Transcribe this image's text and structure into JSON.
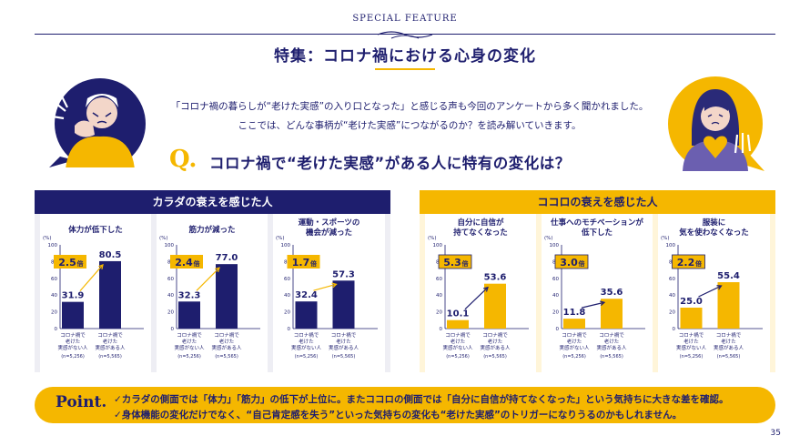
{
  "header": {
    "feature_label": "SPECIAL FEATURE",
    "title": "特集：コロナ禍における心身の変化"
  },
  "intro": {
    "line1": "「コロナ禍の暮らしが“老けた実感”の入り口となった」と感じる声も今回のアンケートから多く聞かれました。",
    "line2": "ここでは、どんな事柄が“老けた実感”につながるのか？を読み解いていきます。"
  },
  "question": {
    "letter": "Q.",
    "text": "コロナ禍で“老けた実感”がある人に特有の変化は？"
  },
  "sections": [
    {
      "title": "カラダの衰えを感じた人"
    },
    {
      "title": "ココロの衰えを感じた人"
    }
  ],
  "colors": {
    "navy": "#1e1e6e",
    "yellow": "#f5b700"
  },
  "chart_data": [
    {
      "type": "bar",
      "title": "体力が低下した",
      "ylabel": "(%)",
      "ylim": [
        0,
        100
      ],
      "yticks": [
        "100",
        "80",
        "60",
        "40",
        "20",
        "0"
      ],
      "categories": [
        "コロナ禍で老けた実感がない人",
        "コロナ禍で老けた実感がある人"
      ],
      "cat_lines": [
        [
          "コロナ禍で",
          "老けた",
          "実感がない人"
        ],
        [
          "コロナ禍で",
          "老けた",
          "実感がある人"
        ]
      ],
      "n": [
        "(n=5,256)",
        "(n=5,565)"
      ],
      "values": [
        31.9,
        80.5
      ],
      "labels": [
        "31.9",
        "80.5"
      ],
      "ratio": "2.5",
      "ratio_unit": "倍",
      "color": "#1e1e6e"
    },
    {
      "type": "bar",
      "title": "筋力が減った",
      "ylabel": "(%)",
      "ylim": [
        0,
        100
      ],
      "yticks": [
        "100",
        "80",
        "60",
        "40",
        "20",
        "0"
      ],
      "categories": [
        "コロナ禍で老けた実感がない人",
        "コロナ禍で老けた実感がある人"
      ],
      "cat_lines": [
        [
          "コロナ禍で",
          "老けた",
          "実感がない人"
        ],
        [
          "コロナ禍で",
          "老けた",
          "実感がある人"
        ]
      ],
      "n": [
        "(n=5,256)",
        "(n=5,565)"
      ],
      "values": [
        32.3,
        77.0
      ],
      "labels": [
        "32.3",
        "77.0"
      ],
      "ratio": "2.4",
      "ratio_unit": "倍",
      "color": "#1e1e6e"
    },
    {
      "type": "bar",
      "title": "運動・スポーツの機会が減った",
      "ylabel": "(%)",
      "ylim": [
        0,
        100
      ],
      "yticks": [
        "100",
        "80",
        "60",
        "40",
        "20",
        "0"
      ],
      "categories": [
        "コロナ禍で老けた実感がない人",
        "コロナ禍で老けた実感がある人"
      ],
      "cat_lines": [
        [
          "コロナ禍で",
          "老けた",
          "実感がない人"
        ],
        [
          "コロナ禍で",
          "老けた",
          "実感がある人"
        ]
      ],
      "n": [
        "(n=5,256)",
        "(n=5,565)"
      ],
      "values": [
        32.4,
        57.3
      ],
      "labels": [
        "32.4",
        "57.3"
      ],
      "ratio": "1.7",
      "ratio_unit": "倍",
      "color": "#1e1e6e"
    },
    {
      "type": "bar",
      "title": "自分に自信が持てなくなった",
      "ylabel": "(%)",
      "ylim": [
        0,
        100
      ],
      "yticks": [
        "100",
        "80",
        "60",
        "40",
        "20",
        "0"
      ],
      "categories": [
        "コロナ禍で老けた実感がない人",
        "コロナ禍で老けた実感がある人"
      ],
      "cat_lines": [
        [
          "コロナ禍で",
          "老けた",
          "実感がない人"
        ],
        [
          "コロナ禍で",
          "老けた",
          "実感がある人"
        ]
      ],
      "n": [
        "(n=5,256)",
        "(n=5,565)"
      ],
      "values": [
        10.1,
        53.6
      ],
      "labels": [
        "10.1",
        "53.6"
      ],
      "ratio": "5.3",
      "ratio_unit": "倍",
      "color": "#f5b700"
    },
    {
      "type": "bar",
      "title": "仕事へのモチベーションが低下した",
      "ylabel": "(%)",
      "ylim": [
        0,
        100
      ],
      "yticks": [
        "100",
        "80",
        "60",
        "40",
        "20",
        "0"
      ],
      "categories": [
        "コロナ禍で老けた実感がない人",
        "コロナ禍で老けた実感がある人"
      ],
      "cat_lines": [
        [
          "コロナ禍で",
          "老けた",
          "実感がない人"
        ],
        [
          "コロナ禍で",
          "老けた",
          "実感がある人"
        ]
      ],
      "n": [
        "(n=5,256)",
        "(n=5,565)"
      ],
      "values": [
        11.8,
        35.6
      ],
      "labels": [
        "11.8",
        "35.6"
      ],
      "ratio": "3.0",
      "ratio_unit": "倍",
      "color": "#f5b700"
    },
    {
      "type": "bar",
      "title": "服装に気を使わなくなった",
      "ylabel": "(%)",
      "ylim": [
        0,
        100
      ],
      "yticks": [
        "100",
        "80",
        "60",
        "40",
        "20",
        "0"
      ],
      "categories": [
        "コロナ禍で老けた実感がない人",
        "コロナ禍で老けた実感がある人"
      ],
      "cat_lines": [
        [
          "コロナ禍で",
          "老けた",
          "実感がない人"
        ],
        [
          "コロナ禍で",
          "老けた",
          "実感がある人"
        ]
      ],
      "n": [
        "(n=5,256)",
        "(n=5,565)"
      ],
      "values": [
        25.0,
        55.4
      ],
      "labels": [
        "25.0",
        "55.4"
      ],
      "ratio": "2.2",
      "ratio_unit": "倍",
      "color": "#f5b700"
    }
  ],
  "point": {
    "label": "Point.",
    "line1": "✓カラダの側面では「体力」「筋力」の低下が上位に。またココロの側面では「自分に自信が持てなくなった」という気持ちに大きな差を確認。",
    "line2": "✓身体機能の変化だけでなく、“自己肯定感を失う”といった気持ちの変化も“老けた実感”のトリガーになりうるのかもしれません。"
  },
  "page_number": "35"
}
